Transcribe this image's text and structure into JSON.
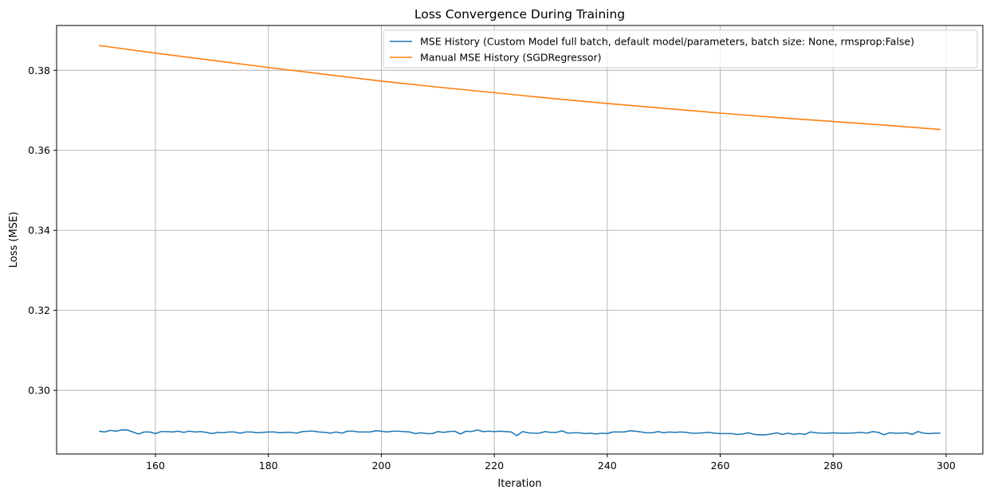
{
  "chart_data": {
    "type": "line",
    "title": "Loss Convergence During Training",
    "xlabel": "Iteration",
    "ylabel": "Loss (MSE)",
    "xlim": [
      142.5,
      306.5
    ],
    "ylim": [
      0.2841,
      0.3912
    ],
    "xticks": [
      160,
      180,
      200,
      220,
      240,
      260,
      280,
      300
    ],
    "yticks": [
      0.3,
      0.32,
      0.34,
      0.36,
      0.38
    ],
    "ytick_labels": [
      "0.30",
      "0.32",
      "0.34",
      "0.36",
      "0.38"
    ],
    "grid": true,
    "legend_position": "top-right",
    "series": [
      {
        "name": "MSE History (Custom Model full batch, default model/parameters, batch size: None, rmsprop:False)",
        "color": "#1f77b4",
        "x_start": 150,
        "x_step": 1,
        "values": [
          0.2898,
          0.2896,
          0.29,
          0.2898,
          0.2901,
          0.2901,
          0.2896,
          0.2891,
          0.2896,
          0.2896,
          0.2892,
          0.2897,
          0.2897,
          0.2896,
          0.2898,
          0.2895,
          0.2898,
          0.2896,
          0.2897,
          0.2895,
          0.2892,
          0.2895,
          0.2894,
          0.2896,
          0.2896,
          0.2893,
          0.2896,
          0.2896,
          0.2894,
          0.2895,
          0.2896,
          0.2896,
          0.2894,
          0.2895,
          0.2895,
          0.2893,
          0.2897,
          0.2898,
          0.2898,
          0.2896,
          0.2895,
          0.2893,
          0.2896,
          0.2893,
          0.2898,
          0.2898,
          0.2896,
          0.2896,
          0.2896,
          0.2899,
          0.2898,
          0.2896,
          0.2898,
          0.2898,
          0.2897,
          0.2896,
          0.2892,
          0.2894,
          0.2892,
          0.2892,
          0.2897,
          0.2895,
          0.2897,
          0.2898,
          0.2891,
          0.2898,
          0.2897,
          0.2901,
          0.2897,
          0.2898,
          0.2897,
          0.2898,
          0.2897,
          0.2896,
          0.2887,
          0.2897,
          0.2894,
          0.2893,
          0.2893,
          0.2897,
          0.2895,
          0.2895,
          0.2899,
          0.2893,
          0.2894,
          0.2894,
          0.2892,
          0.2893,
          0.2891,
          0.2893,
          0.2892,
          0.2896,
          0.2896,
          0.2896,
          0.2899,
          0.2898,
          0.2896,
          0.2894,
          0.2894,
          0.2897,
          0.2894,
          0.2896,
          0.2895,
          0.2896,
          0.2895,
          0.2893,
          0.2893,
          0.2894,
          0.2895,
          0.2893,
          0.2892,
          0.2892,
          0.2892,
          0.289,
          0.2891,
          0.2894,
          0.289,
          0.2889,
          0.2889,
          0.2891,
          0.2894,
          0.289,
          0.2893,
          0.289,
          0.2892,
          0.289,
          0.2896,
          0.2894,
          0.2893,
          0.2893,
          0.2894,
          0.2893,
          0.2893,
          0.2893,
          0.2894,
          0.2895,
          0.2893,
          0.2897,
          0.2895,
          0.2889,
          0.2894,
          0.2893,
          0.2893,
          0.2894,
          0.289,
          0.2897,
          0.2893,
          0.2892,
          0.2893,
          0.2893
        ]
      },
      {
        "name": "Manual MSE History (SGDRegressor)",
        "color": "#ff7f0e",
        "x": [
          150,
          160,
          170,
          180,
          190,
          200,
          210,
          220,
          230,
          240,
          250,
          260,
          270,
          280,
          290,
          299
        ],
        "values": [
          0.3862,
          0.3843,
          0.3825,
          0.3807,
          0.379,
          0.3773,
          0.3758,
          0.3744,
          0.373,
          0.3717,
          0.3705,
          0.3693,
          0.3682,
          0.3672,
          0.3662,
          0.3652
        ]
      }
    ]
  }
}
